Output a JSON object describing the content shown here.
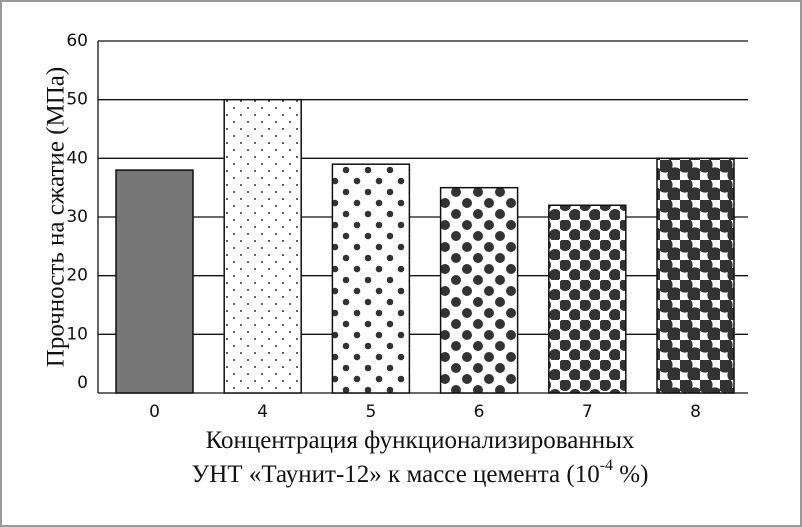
{
  "chart_data": {
    "type": "bar",
    "ylabel": "Прочность на сжатие (МПа)",
    "xlabel": {
      "line1": "Концентрация функционализированных",
      "line2": "УНТ «Таунит-12» к массе цемента (10",
      "superscript": "-4",
      "line2_end": " %)"
    },
    "categories": [
      "0",
      "4",
      "5",
      "6",
      "7",
      "8"
    ],
    "values": [
      38,
      50,
      39,
      35,
      32,
      40
    ],
    "ylim": [
      0,
      60
    ],
    "yticks": [
      0,
      10,
      20,
      30,
      40,
      50,
      60
    ],
    "grid": true
  }
}
